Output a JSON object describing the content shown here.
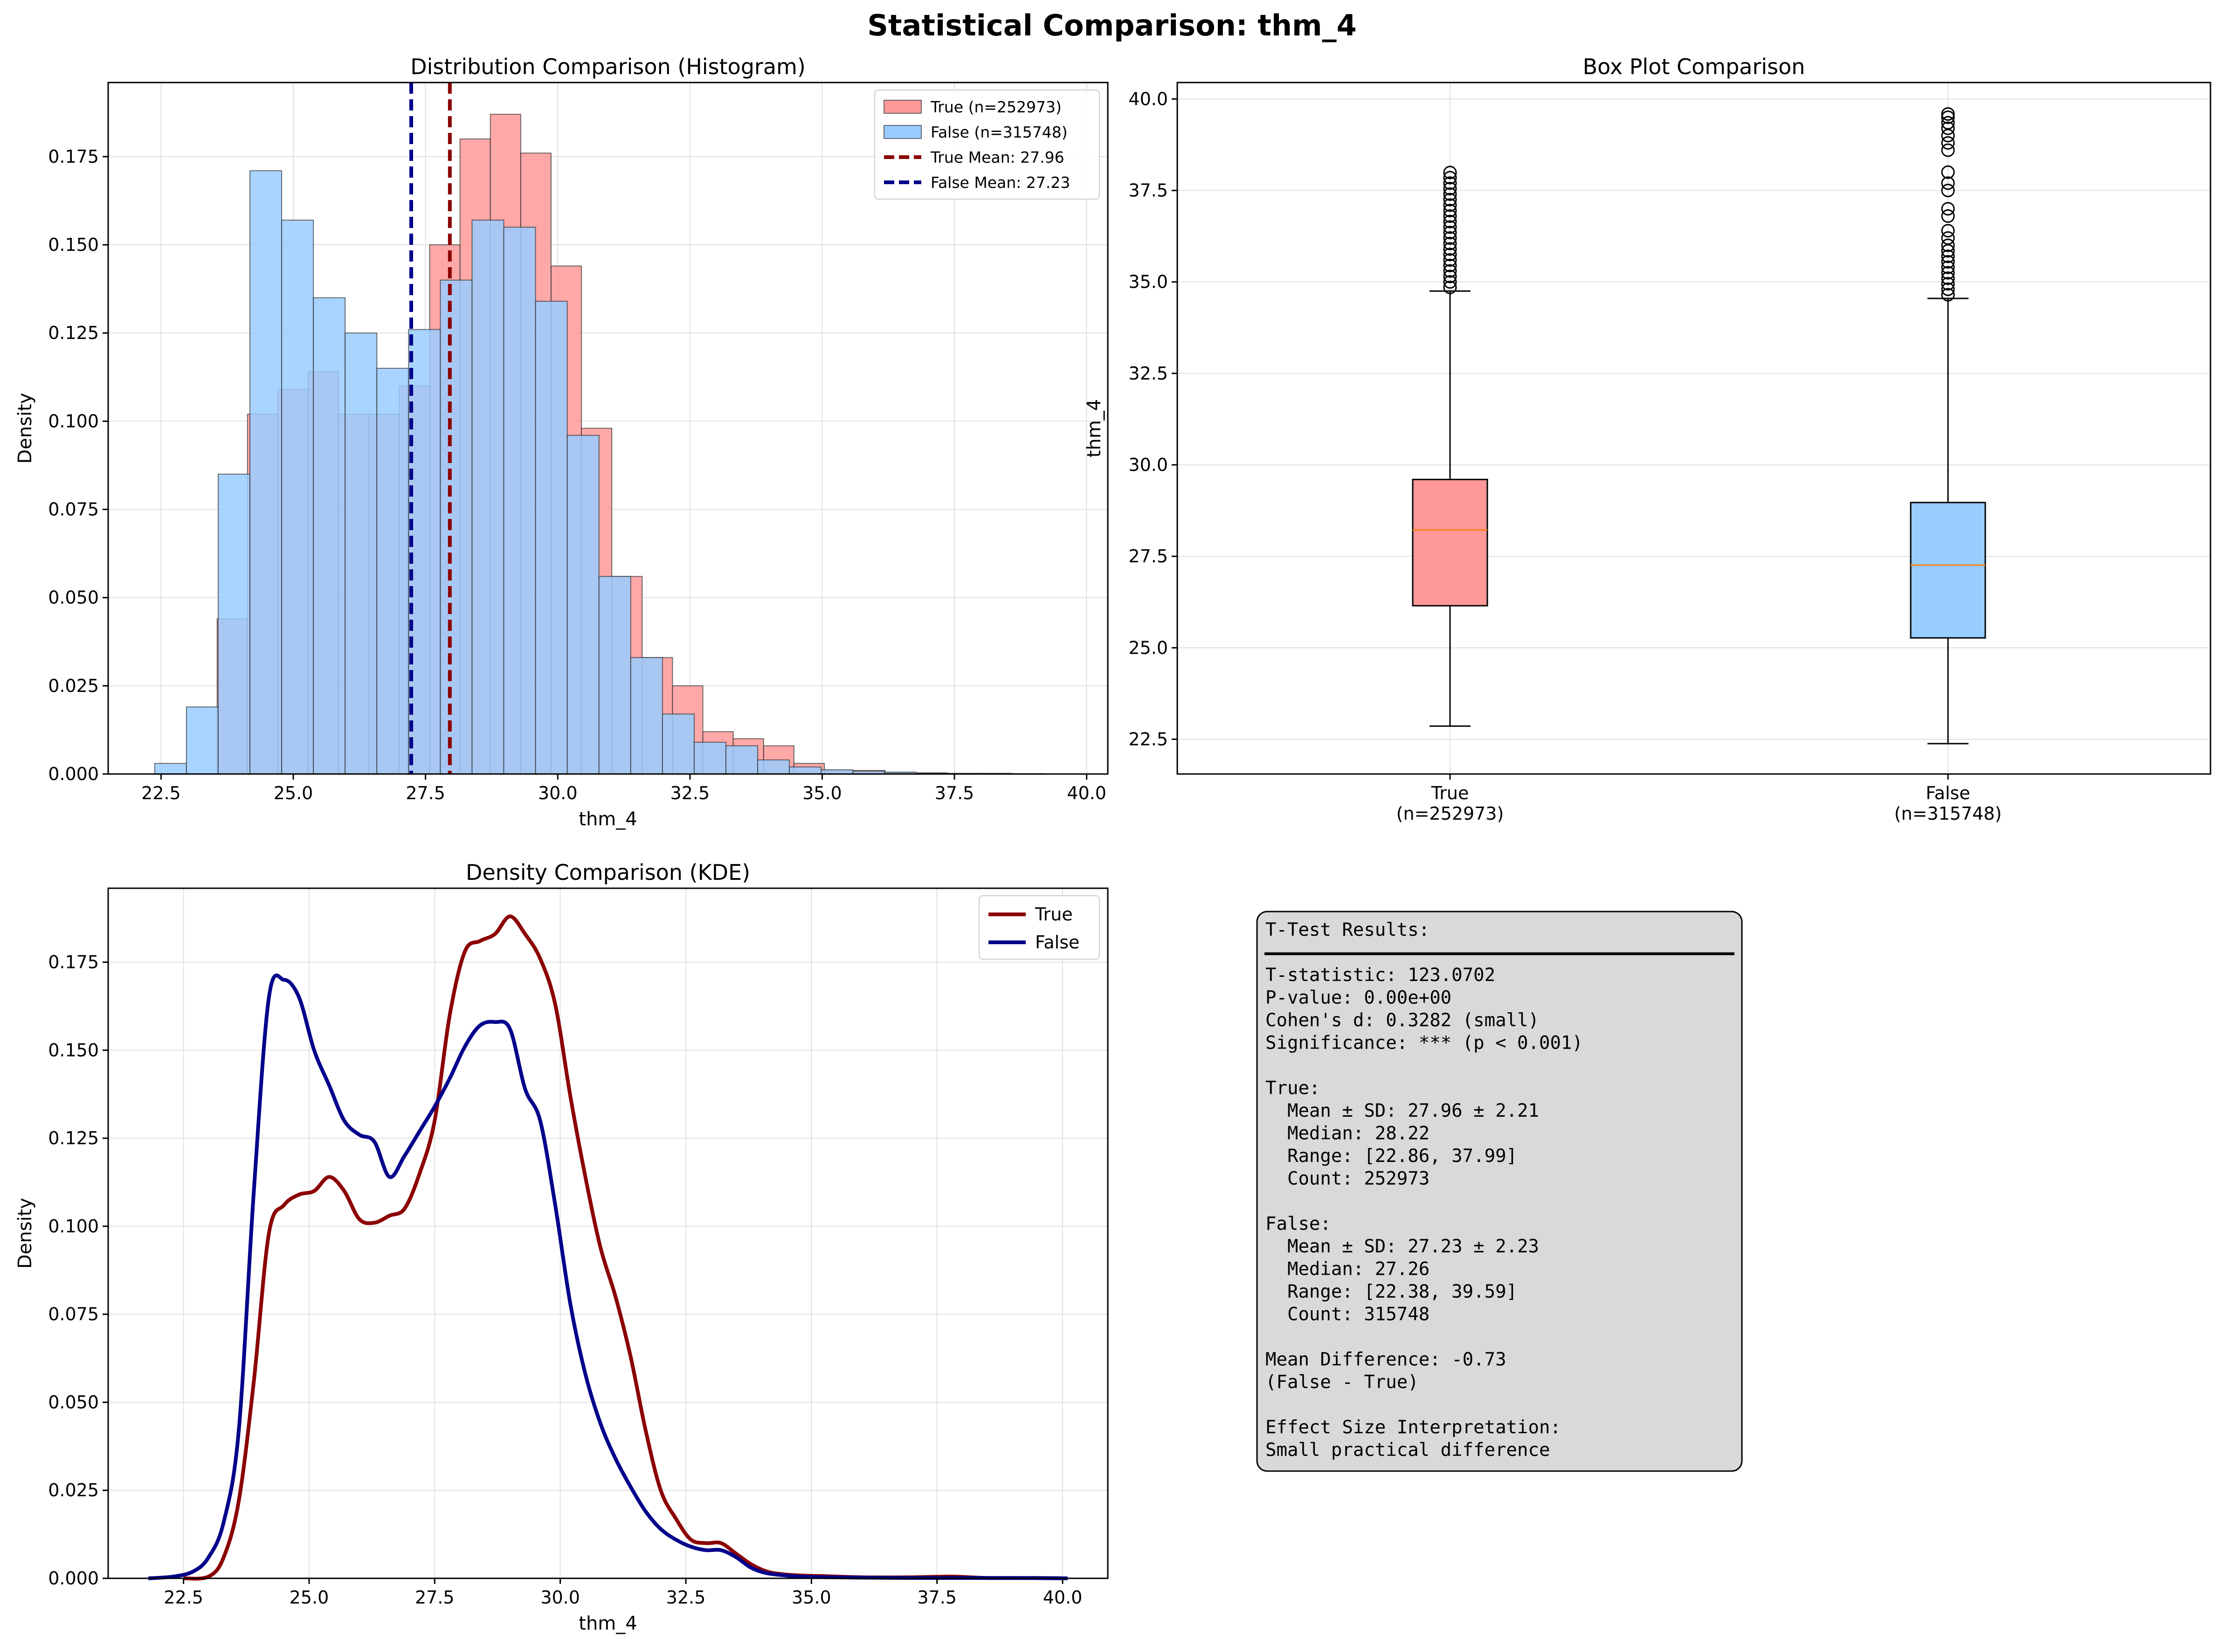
{
  "title": "Statistical Comparison: thm_4",
  "colors": {
    "true_fill": "#ff9999",
    "false_fill": "#99ccff",
    "true_line": "#8b0000",
    "false_line": "#00008b",
    "median": "#ff7f0e",
    "grid": "#e0e0e0",
    "textbox_bg": "#d9d9d9"
  },
  "chart_data": [
    {
      "type": "bar",
      "name": "histogram",
      "title": "Distribution Comparison (Histogram)",
      "xlabel": "thm_4",
      "ylabel": "Density",
      "xlim": [
        21.5,
        40.4
      ],
      "ylim": [
        0,
        0.196
      ],
      "xticks": [
        "22.5",
        "25.0",
        "27.5",
        "30.0",
        "32.5",
        "35.0",
        "37.5",
        "40.0"
      ],
      "yticks": [
        "0.000",
        "0.025",
        "0.050",
        "0.075",
        "0.100",
        "0.125",
        "0.150",
        "0.175"
      ],
      "grid": true,
      "legend_position": "top-right",
      "true_bins": {
        "label": "True (n=252973)",
        "start": 23.56,
        "width": 0.574,
        "values": [
          0.044,
          0.102,
          0.109,
          0.114,
          0.102,
          0.102,
          0.11,
          0.15,
          0.18,
          0.187,
          0.176,
          0.144,
          0.098,
          0.056,
          0.033,
          0.025,
          0.012,
          0.01,
          0.008,
          0.003,
          0.001,
          0.001,
          0.0005,
          0.0003
        ]
      },
      "false_bins": {
        "label": "False (n=315748)",
        "start": 22.38,
        "width": 0.6,
        "values": [
          0.003,
          0.019,
          0.085,
          0.171,
          0.157,
          0.135,
          0.125,
          0.115,
          0.126,
          0.14,
          0.157,
          0.155,
          0.134,
          0.096,
          0.056,
          0.033,
          0.017,
          0.009,
          0.008,
          0.004,
          0.002,
          0.0012,
          0.0008,
          0.0005,
          0.0003,
          0.0002,
          0.0002,
          0.0001
        ]
      },
      "mean_lines": [
        {
          "label": "True Mean: 27.96",
          "value": 27.96,
          "series": "true"
        },
        {
          "label": "False Mean: 27.23",
          "value": 27.23,
          "series": "false"
        }
      ]
    },
    {
      "type": "box",
      "name": "boxplot",
      "title": "Box Plot Comparison",
      "ylabel": "thm_4",
      "ylim": [
        21.55,
        40.45
      ],
      "yticks": [
        "22.5",
        "25.0",
        "27.5",
        "30.0",
        "32.5",
        "35.0",
        "37.5",
        "40.0"
      ],
      "grid": true,
      "categories": [
        "True\n(n=252973)",
        "False\n(n=315748)"
      ],
      "category_labels": [
        [
          "True",
          "(n=252973)"
        ],
        [
          "False",
          "(n=315748)"
        ]
      ],
      "boxes": [
        {
          "series": "true",
          "whisker_low": 22.86,
          "q1": 26.15,
          "median": 28.22,
          "q3": 29.6,
          "whisker_high": 34.75,
          "outliers": [
            34.85,
            35.0,
            35.15,
            35.3,
            35.45,
            35.6,
            35.75,
            35.9,
            36.05,
            36.2,
            36.35,
            36.5,
            36.65,
            36.8,
            36.95,
            37.1,
            37.25,
            37.4,
            37.55,
            37.7,
            37.85,
            37.99
          ]
        },
        {
          "series": "false",
          "whisker_low": 22.38,
          "q1": 25.27,
          "median": 27.26,
          "q3": 28.97,
          "whisker_high": 34.55,
          "outliers": [
            34.65,
            34.8,
            34.95,
            35.1,
            35.25,
            35.4,
            35.55,
            35.7,
            35.85,
            36.0,
            36.2,
            36.4,
            36.8,
            37.0,
            37.5,
            37.7,
            38.0,
            38.6,
            38.8,
            39.0,
            39.2,
            39.35,
            39.5,
            39.59
          ]
        }
      ]
    },
    {
      "type": "line",
      "name": "kde",
      "title": "Density Comparison (KDE)",
      "xlabel": "thm_4",
      "ylabel": "Density",
      "xlim": [
        21.0,
        40.9
      ],
      "ylim": [
        0,
        0.196
      ],
      "xticks": [
        "22.5",
        "25.0",
        "27.5",
        "30.0",
        "32.5",
        "35.0",
        "37.5",
        "40.0"
      ],
      "yticks": [
        "0.000",
        "0.025",
        "0.050",
        "0.075",
        "0.100",
        "0.125",
        "0.150",
        "0.175"
      ],
      "grid": true,
      "legend_position": "top-right",
      "series": [
        {
          "name": "True",
          "color_key": "true_line",
          "x": [
            22.5,
            23.0,
            23.3,
            23.6,
            23.9,
            24.2,
            24.5,
            24.8,
            25.1,
            25.4,
            25.7,
            26.0,
            26.3,
            26.6,
            26.9,
            27.2,
            27.5,
            27.8,
            28.1,
            28.4,
            28.7,
            29.0,
            29.3,
            29.6,
            29.9,
            30.2,
            30.5,
            30.8,
            31.1,
            31.4,
            31.7,
            32.0,
            32.3,
            32.6,
            32.9,
            33.2,
            33.5,
            33.8,
            34.1,
            34.4,
            34.8,
            35.3,
            36.0,
            37.0,
            37.8,
            38.5,
            39.5,
            40.1
          ],
          "y": [
            0.0,
            0.0005,
            0.006,
            0.022,
            0.056,
            0.098,
            0.106,
            0.109,
            0.11,
            0.114,
            0.11,
            0.102,
            0.101,
            0.103,
            0.105,
            0.115,
            0.13,
            0.16,
            0.178,
            0.181,
            0.183,
            0.188,
            0.183,
            0.176,
            0.163,
            0.137,
            0.114,
            0.094,
            0.08,
            0.063,
            0.042,
            0.025,
            0.017,
            0.011,
            0.01,
            0.01,
            0.007,
            0.004,
            0.002,
            0.0012,
            0.0008,
            0.0006,
            0.0003,
            0.0003,
            0.0005,
            0.0001,
            0.0001,
            0.0
          ]
        },
        {
          "name": "False",
          "color_key": "false_line",
          "x": [
            21.8,
            22.3,
            22.7,
            23.0,
            23.3,
            23.6,
            23.9,
            24.2,
            24.5,
            24.8,
            25.1,
            25.4,
            25.7,
            26.0,
            26.3,
            26.6,
            26.9,
            27.2,
            27.5,
            27.8,
            28.1,
            28.4,
            28.7,
            29.0,
            29.3,
            29.6,
            29.9,
            30.2,
            30.5,
            30.8,
            31.1,
            31.4,
            31.7,
            32.0,
            32.3,
            32.6,
            32.9,
            33.2,
            33.5,
            33.8,
            34.1,
            34.5,
            35.0,
            36.0,
            37.0,
            38.0,
            39.0,
            40.1
          ],
          "y": [
            0.0,
            0.0005,
            0.002,
            0.006,
            0.016,
            0.042,
            0.11,
            0.165,
            0.17,
            0.165,
            0.15,
            0.14,
            0.13,
            0.126,
            0.124,
            0.114,
            0.12,
            0.127,
            0.134,
            0.142,
            0.151,
            0.157,
            0.158,
            0.156,
            0.139,
            0.13,
            0.106,
            0.078,
            0.058,
            0.044,
            0.034,
            0.026,
            0.019,
            0.014,
            0.011,
            0.009,
            0.008,
            0.008,
            0.006,
            0.003,
            0.0015,
            0.0008,
            0.0004,
            0.0002,
            0.0001,
            0.0001,
            0.0001,
            0.0
          ]
        }
      ]
    }
  ],
  "textbox": {
    "lines": [
      "T-Test Results:",
      "",
      "T-statistic: 123.0702",
      "P-value: 0.00e+00",
      "Cohen's d: 0.3282 (small)",
      "Significance: *** (p < 0.001)",
      "",
      "True:",
      "  Mean ± SD: 27.96 ± 2.21",
      "  Median: 28.22",
      "  Range: [22.86, 37.99]",
      "  Count: 252973",
      "",
      "False:",
      "  Mean ± SD: 27.23 ± 2.23",
      "  Median: 27.26",
      "  Range: [22.38, 39.59]",
      "  Count: 315748",
      "",
      "Mean Difference: -0.73",
      "(False - True)",
      "",
      "Effect Size Interpretation:",
      "Small practical difference"
    ]
  }
}
